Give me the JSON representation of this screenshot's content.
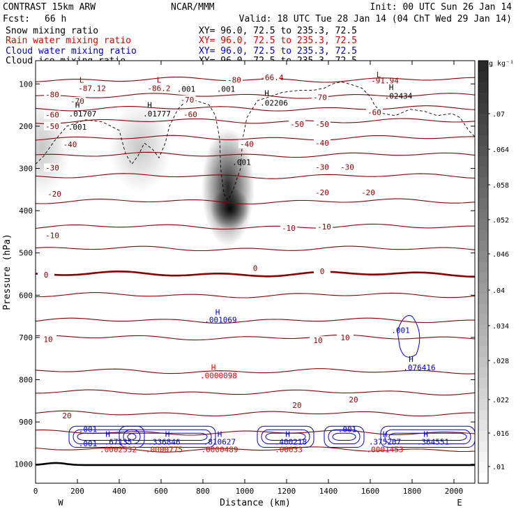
{
  "header": {
    "title": "CONTRAST 15km ARW",
    "model": "NCAR/MMM",
    "init": "Init: 00 UTC Sun 26 Jan 14",
    "fcst_label": "Fcst:",
    "fcst_value": "66 h",
    "valid": "Valid: 18 UTC Tue 28 Jan 14 (04 ChT Wed 29 Jan 14)"
  },
  "fields": [
    {
      "name": "Snow mixing ratio",
      "xy": "XY=  96.0, 72.5 to 235.3, 72.5",
      "color": "#000000"
    },
    {
      "name": "Rain water mixing ratio",
      "xy": "XY=  96.0, 72.5 to 235.3, 72.5",
      "color": "#dd0000"
    },
    {
      "name": "Cloud water mixing ratio",
      "xy": "XY=  96.0, 72.5 to 235.3, 72.5",
      "color": "#0000cc"
    },
    {
      "name": "Cloud ice mixing ratio",
      "xy": "XY=  96.0, 72.5 to 235.3, 72.5",
      "color": "#000000"
    }
  ],
  "chart_data": {
    "type": "heatmap",
    "xlabel": "Distance (km)",
    "ylabel": "Pressure (hPa)",
    "xlim": [
      0,
      2100
    ],
    "ylim": [
      1045,
      45
    ],
    "x_ticks": [
      0,
      200,
      400,
      600,
      800,
      1000,
      1200,
      1400,
      1600,
      1800,
      2000
    ],
    "y_ticks": [
      100,
      200,
      300,
      400,
      500,
      600,
      700,
      800,
      900,
      1000
    ],
    "x_end_labels": {
      "left": "W",
      "right": "E"
    },
    "colorbar": {
      "unit": "g kg⁻¹",
      "ticks": [
        ".01",
        ".016",
        ".022",
        ".028",
        ".034",
        ".04",
        ".046",
        ".052",
        ".058",
        ".064",
        ".07"
      ]
    },
    "temperature_contours": [
      {
        "p": 90,
        "label": "-80"
      },
      {
        "p": 128,
        "label": "-70"
      },
      {
        "p": 158,
        "label": "-60"
      },
      {
        "p": 188,
        "label": "-50"
      },
      {
        "p": 228,
        "label": "-40"
      },
      {
        "p": 268,
        "label": "-30"
      },
      {
        "p": 318,
        "label": "-20"
      },
      {
        "p": 378,
        "label": "-20"
      },
      {
        "p": 438,
        "label": "-10"
      },
      {
        "p": 490,
        "label": "-10"
      },
      {
        "p": 550,
        "label": "0"
      },
      {
        "p": 600,
        "label": ""
      },
      {
        "p": 660,
        "label": ""
      },
      {
        "p": 700,
        "label": "10"
      },
      {
        "p": 780,
        "label": ""
      },
      {
        "p": 830,
        "label": ""
      },
      {
        "p": 880,
        "label": "20"
      },
      {
        "p": 925,
        "label": ""
      },
      {
        "p": 965,
        "label": ""
      }
    ],
    "contour_labels": [
      {
        "x": 80,
        "p": 125,
        "text": "-80",
        "color": "#8b0000"
      },
      {
        "x": 950,
        "p": 90,
        "text": "-80",
        "color": "#8b0000"
      },
      {
        "x": 1130,
        "p": 85,
        "text": "-66.4",
        "color": "#8b0000"
      },
      {
        "x": 200,
        "p": 141,
        "text": "-70",
        "color": "#8b0000"
      },
      {
        "x": 725,
        "p": 137,
        "text": "-70",
        "color": "#8b0000"
      },
      {
        "x": 1360,
        "p": 132,
        "text": "-70",
        "color": "#8b0000"
      },
      {
        "x": 80,
        "p": 173,
        "text": "-60",
        "color": "#8b0000"
      },
      {
        "x": 740,
        "p": 172,
        "text": "-60",
        "color": "#8b0000"
      },
      {
        "x": 1620,
        "p": 167,
        "text": "-60",
        "color": "#8b0000"
      },
      {
        "x": 80,
        "p": 200,
        "text": "-50",
        "color": "#8b0000"
      },
      {
        "x": 1250,
        "p": 195,
        "text": "-50",
        "color": "#8b0000"
      },
      {
        "x": 1370,
        "p": 195,
        "text": "-50",
        "color": "#8b0000"
      },
      {
        "x": 165,
        "p": 243,
        "text": "-40",
        "color": "#8b0000"
      },
      {
        "x": 1010,
        "p": 242,
        "text": "-40",
        "color": "#8b0000"
      },
      {
        "x": 1370,
        "p": 240,
        "text": "-40",
        "color": "#8b0000"
      },
      {
        "x": 80,
        "p": 298,
        "text": "-30",
        "color": "#8b0000"
      },
      {
        "x": 1370,
        "p": 297,
        "text": "-30",
        "color": "#8b0000"
      },
      {
        "x": 1490,
        "p": 297,
        "text": "-30",
        "color": "#8b0000"
      },
      {
        "x": 90,
        "p": 360,
        "text": "-20",
        "color": "#8b0000"
      },
      {
        "x": 1370,
        "p": 357,
        "text": "-20",
        "color": "#8b0000"
      },
      {
        "x": 1590,
        "p": 357,
        "text": "-20",
        "color": "#8b0000"
      },
      {
        "x": 80,
        "p": 458,
        "text": "-10",
        "color": "#8b0000"
      },
      {
        "x": 1210,
        "p": 441,
        "text": "-10",
        "color": "#8b0000"
      },
      {
        "x": 1380,
        "p": 438,
        "text": "-10",
        "color": "#8b0000"
      },
      {
        "x": 50,
        "p": 552,
        "text": "0",
        "color": "#8b0000"
      },
      {
        "x": 1050,
        "p": 536,
        "text": "0",
        "color": "#8b0000"
      },
      {
        "x": 1370,
        "p": 543,
        "text": "0",
        "color": "#8b0000"
      },
      {
        "x": 60,
        "p": 704,
        "text": "10",
        "color": "#8b0000"
      },
      {
        "x": 1350,
        "p": 707,
        "text": "10",
        "color": "#8b0000"
      },
      {
        "x": 1480,
        "p": 700,
        "text": "10",
        "color": "#8b0000"
      },
      {
        "x": 150,
        "p": 885,
        "text": "20",
        "color": "#8b0000"
      },
      {
        "x": 1250,
        "p": 860,
        "text": "20",
        "color": "#8b0000"
      },
      {
        "x": 1520,
        "p": 847,
        "text": "20",
        "color": "#8b0000"
      }
    ],
    "extrema_labels": [
      {
        "x": 220,
        "p": 90,
        "text": "L",
        "color": "#8b0000"
      },
      {
        "x": 270,
        "p": 110,
        "text": "-87.12",
        "color": "#8b0000"
      },
      {
        "x": 590,
        "p": 90,
        "text": "L",
        "color": "#8b0000"
      },
      {
        "x": 590,
        "p": 110,
        "text": "-86.2",
        "color": "#8b0000"
      },
      {
        "x": 1640,
        "p": 78,
        "text": "L",
        "color": "#8b0000"
      },
      {
        "x": 1670,
        "p": 92,
        "text": "-91.94",
        "color": "#8b0000"
      },
      {
        "x": 1105,
        "p": 122,
        "text": "H",
        "color": "#000000"
      },
      {
        "x": 1140,
        "p": 145,
        "text": ".02206",
        "color": "#000000"
      },
      {
        "x": 1700,
        "p": 108,
        "text": "H",
        "color": "#000000"
      },
      {
        "x": 1735,
        "p": 128,
        "text": ".02434",
        "color": "#000000"
      },
      {
        "x": 200,
        "p": 150,
        "text": "H",
        "color": "#000000"
      },
      {
        "x": 225,
        "p": 170,
        "text": ".01707",
        "color": "#000000"
      },
      {
        "x": 545,
        "p": 150,
        "text": "H",
        "color": "#000000"
      },
      {
        "x": 580,
        "p": 170,
        "text": ".01777",
        "color": "#000000"
      },
      {
        "x": 720,
        "p": 112,
        "text": ".001",
        "color": "#000000"
      },
      {
        "x": 910,
        "p": 112,
        "text": ".001",
        "color": "#000000"
      },
      {
        "x": 200,
        "p": 202,
        "text": ".001",
        "color": "#000000"
      },
      {
        "x": 985,
        "p": 285,
        "text": ".001",
        "color": "#000000"
      },
      {
        "x": 870,
        "p": 640,
        "text": "H",
        "color": "#0000cc"
      },
      {
        "x": 885,
        "p": 658,
        "text": ".001069",
        "color": "#0000cc"
      },
      {
        "x": 850,
        "p": 770,
        "text": "H",
        "color": "#dd0000"
      },
      {
        "x": 875,
        "p": 790,
        "text": ".0000098",
        "color": "#dd0000"
      },
      {
        "x": 1745,
        "p": 683,
        "text": ".001",
        "color": "#0000cc"
      },
      {
        "x": 1795,
        "p": 751,
        "text": "H",
        "color": "#0000cc"
      },
      {
        "x": 1835,
        "p": 771,
        "text": ".076416",
        "color": "#0000cc"
      },
      {
        "x": 250,
        "p": 917,
        "text": ".001",
        "color": "#0000cc"
      },
      {
        "x": 250,
        "p": 951,
        "text": ".001",
        "color": "#0000cc"
      },
      {
        "x": 1490,
        "p": 917,
        "text": ".001",
        "color": "#0000cc"
      },
      {
        "x": 345,
        "p": 929,
        "text": "H",
        "color": "#0000cc"
      },
      {
        "x": 395,
        "p": 947,
        "text": ".67135",
        "color": "#0000cc"
      },
      {
        "x": 395,
        "p": 965,
        "text": ".0002532",
        "color": "#dd0000"
      },
      {
        "x": 630,
        "p": 929,
        "text": "H",
        "color": "#0000cc"
      },
      {
        "x": 615,
        "p": 947,
        "text": ".336846",
        "color": "#0000cc"
      },
      {
        "x": 615,
        "p": 965,
        "text": ".0000775",
        "color": "#dd0000"
      },
      {
        "x": 880,
        "p": 929,
        "text": "H",
        "color": "#0000cc"
      },
      {
        "x": 880,
        "p": 947,
        "text": ".810627",
        "color": "#0000cc"
      },
      {
        "x": 880,
        "p": 965,
        "text": ".0000489",
        "color": "#dd0000"
      },
      {
        "x": 1205,
        "p": 929,
        "text": "H",
        "color": "#0000cc"
      },
      {
        "x": 1220,
        "p": 947,
        "text": ".400218",
        "color": "#0000cc"
      },
      {
        "x": 1210,
        "p": 965,
        "text": ".00033",
        "color": "#dd0000"
      },
      {
        "x": 1670,
        "p": 929,
        "text": "H",
        "color": "#0000cc"
      },
      {
        "x": 1670,
        "p": 947,
        "text": ".375207",
        "color": "#0000cc"
      },
      {
        "x": 1670,
        "p": 965,
        "text": ".0001453",
        "color": "#dd0000"
      },
      {
        "x": 1865,
        "p": 929,
        "text": "H",
        "color": "#0000cc"
      },
      {
        "x": 1900,
        "p": 947,
        "text": ".364551",
        "color": "#0000cc"
      }
    ],
    "shading_blobs": [
      {
        "x": 920,
        "p": 345,
        "rx": 38,
        "ry": 85,
        "intensity": 0.85
      },
      {
        "x": 930,
        "p": 395,
        "rx": 28,
        "ry": 30,
        "intensity": 0.95
      },
      {
        "x": 500,
        "p": 250,
        "rx": 45,
        "ry": 65,
        "intensity": 0.22
      },
      {
        "x": 30,
        "p": 250,
        "rx": 40,
        "ry": 70,
        "intensity": 0.22
      }
    ]
  }
}
